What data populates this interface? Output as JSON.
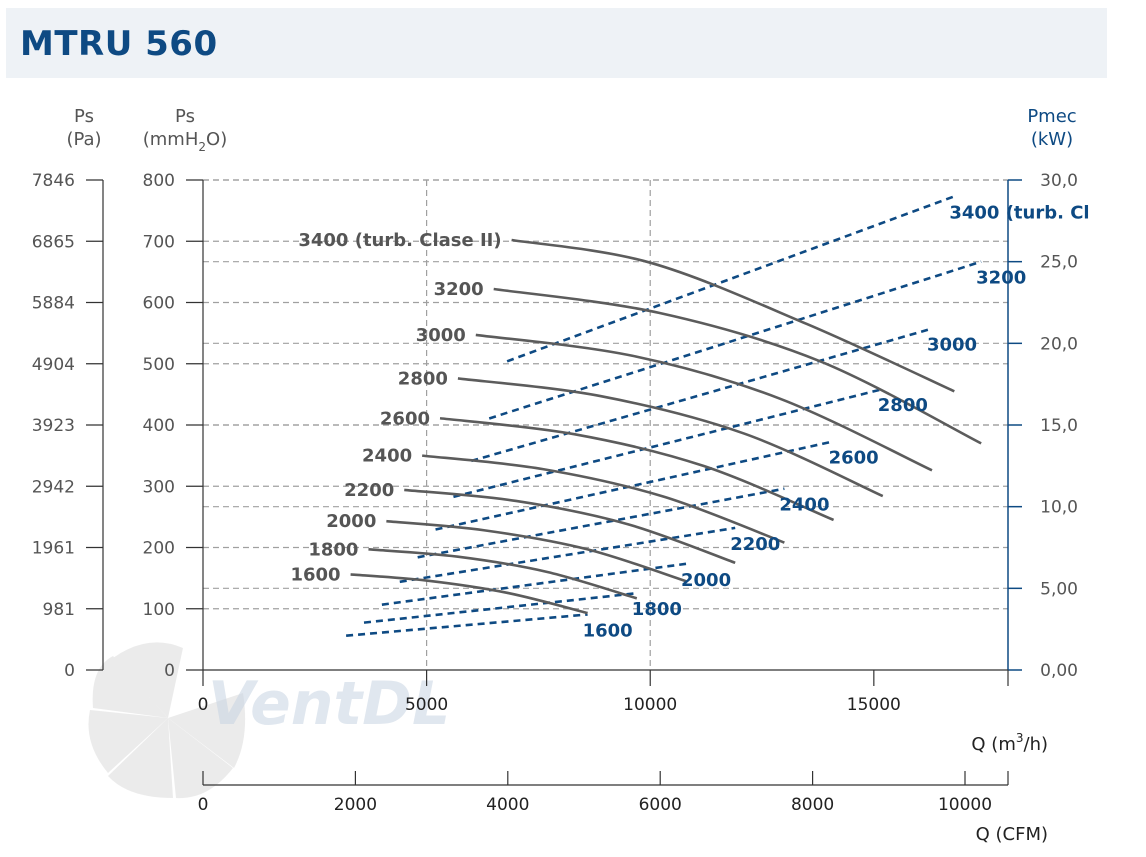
{
  "title": "MTRU 560",
  "watermark": "VentDL",
  "chart_data": {
    "type": "line",
    "axes": {
      "left_pa": {
        "label_line1": "Ps",
        "label_line2": "(Pa)",
        "ticks": [
          "7846",
          "6865",
          "5884",
          "4904",
          "3923",
          "2942",
          "1961",
          "981",
          "0"
        ]
      },
      "left_mmh2o": {
        "label_line1": "Ps",
        "label_line2_pre": "(mmH",
        "label_line2_sub": "2",
        "label_line2_post": "O)",
        "ticks": [
          "800",
          "700",
          "600",
          "500",
          "400",
          "300",
          "200",
          "100",
          "0"
        ],
        "range": [
          0,
          800
        ]
      },
      "right_kw": {
        "label_line1": "Pmec",
        "label_line2": "(kW)",
        "ticks": [
          "30,0",
          "25,0",
          "20,0",
          "15,0",
          "10,0",
          "5,00",
          "0,00"
        ],
        "range": [
          0,
          30
        ]
      },
      "x_m3h": {
        "label_pre": "Q (m",
        "label_sup": "3",
        "label_post": "/h)",
        "ticks": [
          "0",
          "5000",
          "10000",
          "15000"
        ],
        "range": [
          0,
          18000
        ]
      },
      "x_cfm": {
        "label": "Q (CFM)",
        "ticks": [
          "0",
          "2000",
          "4000",
          "6000",
          "8000",
          "10000"
        ],
        "range": [
          0,
          10000
        ]
      }
    },
    "grid": true,
    "pressure_series": [
      {
        "name": "1600",
        "unit_axis": "mmH2O",
        "x": [
          3300,
          5000,
          6800,
          8600
        ],
        "y": [
          156,
          146,
          126,
          93
        ]
      },
      {
        "name": "1800",
        "unit_axis": "mmH2O",
        "x": [
          3700,
          5700,
          7700,
          9700
        ],
        "y": [
          197,
          185,
          160,
          117
        ]
      },
      {
        "name": "2000",
        "unit_axis": "mmH2O",
        "x": [
          4100,
          6300,
          8600,
          10800
        ],
        "y": [
          243,
          228,
          197,
          145
        ]
      },
      {
        "name": "2200",
        "unit_axis": "mmH2O",
        "x": [
          4500,
          7000,
          9500,
          11900
        ],
        "y": [
          294,
          276,
          238,
          175
        ]
      },
      {
        "name": "2400",
        "unit_axis": "mmH2O",
        "x": [
          4900,
          7600,
          10300,
          13000
        ],
        "y": [
          350,
          328,
          283,
          208
        ]
      },
      {
        "name": "2600",
        "unit_axis": "mmH2O",
        "x": [
          5300,
          8300,
          11200,
          14100
        ],
        "y": [
          411,
          385,
          333,
          245
        ]
      },
      {
        "name": "2800",
        "unit_axis": "mmH2O",
        "x": [
          5700,
          8900,
          12100,
          15200
        ],
        "y": [
          476,
          447,
          386,
          284
        ]
      },
      {
        "name": "3000",
        "unit_axis": "mmH2O",
        "x": [
          6100,
          9600,
          12900,
          16300
        ],
        "y": [
          547,
          513,
          443,
          326
        ]
      },
      {
        "name": "3200",
        "unit_axis": "mmH2O",
        "x": [
          6500,
          10200,
          13800,
          17400
        ],
        "y": [
          622,
          583,
          504,
          370
        ]
      },
      {
        "name": "3400 (turb. Clase II)",
        "unit_axis": "mmH2O",
        "x": [
          6900,
          10000,
          13500,
          16800
        ],
        "y": [
          702,
          665,
          565,
          455
        ]
      }
    ],
    "power_series": [
      {
        "name": "1600",
        "unit_axis": "kW",
        "x": [
          3200,
          8600
        ],
        "y": [
          2.1,
          3.4
        ]
      },
      {
        "name": "1800",
        "unit_axis": "kW",
        "x": [
          3600,
          9700
        ],
        "y": [
          2.9,
          4.7
        ]
      },
      {
        "name": "2000",
        "unit_axis": "kW",
        "x": [
          4000,
          10800
        ],
        "y": [
          4.0,
          6.5
        ]
      },
      {
        "name": "2200",
        "unit_axis": "kW",
        "x": [
          4400,
          11900
        ],
        "y": [
          5.4,
          8.7
        ]
      },
      {
        "name": "2400",
        "unit_axis": "kW",
        "x": [
          4800,
          13000
        ],
        "y": [
          6.9,
          11.1
        ]
      },
      {
        "name": "2600",
        "unit_axis": "kW",
        "x": [
          5200,
          14100
        ],
        "y": [
          8.6,
          14.0
        ]
      },
      {
        "name": "2800",
        "unit_axis": "kW",
        "x": [
          5600,
          15200
        ],
        "y": [
          10.6,
          17.2
        ]
      },
      {
        "name": "3000",
        "unit_axis": "kW",
        "x": [
          6000,
          16300
        ],
        "y": [
          12.8,
          20.9
        ]
      },
      {
        "name": "3200",
        "unit_axis": "kW",
        "x": [
          6400,
          17400
        ],
        "y": [
          15.4,
          25.0
        ]
      },
      {
        "name": "3400 (turb. Clase II)",
        "label": "3400 (turb. Cl",
        "unit_axis": "kW",
        "x": [
          6800,
          16800
        ],
        "y": [
          18.9,
          29.0
        ]
      }
    ],
    "colors": {
      "pressure": "#5c5c5c",
      "power": "#0e4a83",
      "grid": "#a0a0a0",
      "axis_right": "#0e4a83",
      "text": "#555555"
    }
  }
}
